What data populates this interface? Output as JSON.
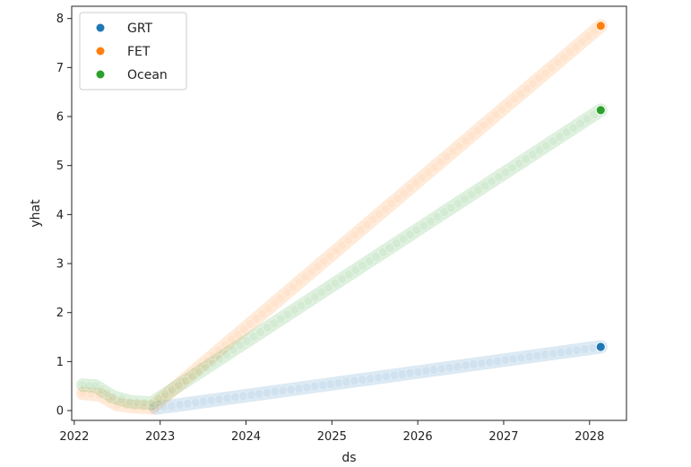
{
  "chart_data": {
    "type": "scatter",
    "title": "",
    "xlabel": "ds",
    "ylabel": "yhat",
    "xlim": [
      2021.97,
      2028.43
    ],
    "ylim": [
      -0.2,
      8.25
    ],
    "xticks": [
      2022,
      2023,
      2024,
      2025,
      2026,
      2027,
      2028
    ],
    "xtick_labels": [
      "2022",
      "2023",
      "2024",
      "2025",
      "2026",
      "2027",
      "2028"
    ],
    "yticks": [
      0,
      1,
      2,
      3,
      4,
      5,
      6,
      7,
      8
    ],
    "ytick_labels": [
      "0",
      "1",
      "2",
      "3",
      "4",
      "5",
      "6",
      "7",
      "8"
    ],
    "grid": false,
    "legend_position": "top-left",
    "series": [
      {
        "name": "GRT",
        "color": "#1f77b4",
        "points": [
          [
            2022.95,
            0.05
          ],
          [
            2028.13,
            1.3
          ]
        ],
        "highlight": [
          2028.13,
          1.3
        ]
      },
      {
        "name": "FET",
        "color": "#ff7f0e",
        "points": [
          [
            2022.1,
            0.35
          ],
          [
            2022.3,
            0.32
          ],
          [
            2022.5,
            0.12
          ],
          [
            2022.7,
            0.08
          ],
          [
            2022.9,
            0.06
          ],
          [
            2028.13,
            7.85
          ]
        ],
        "highlight": [
          2028.13,
          7.85
        ]
      },
      {
        "name": "Ocean",
        "color": "#2ca02c",
        "points": [
          [
            2022.1,
            0.52
          ],
          [
            2022.25,
            0.5
          ],
          [
            2022.45,
            0.28
          ],
          [
            2022.65,
            0.18
          ],
          [
            2022.9,
            0.15
          ],
          [
            2028.13,
            6.13
          ]
        ],
        "highlight": [
          2028.13,
          6.13
        ]
      }
    ]
  }
}
